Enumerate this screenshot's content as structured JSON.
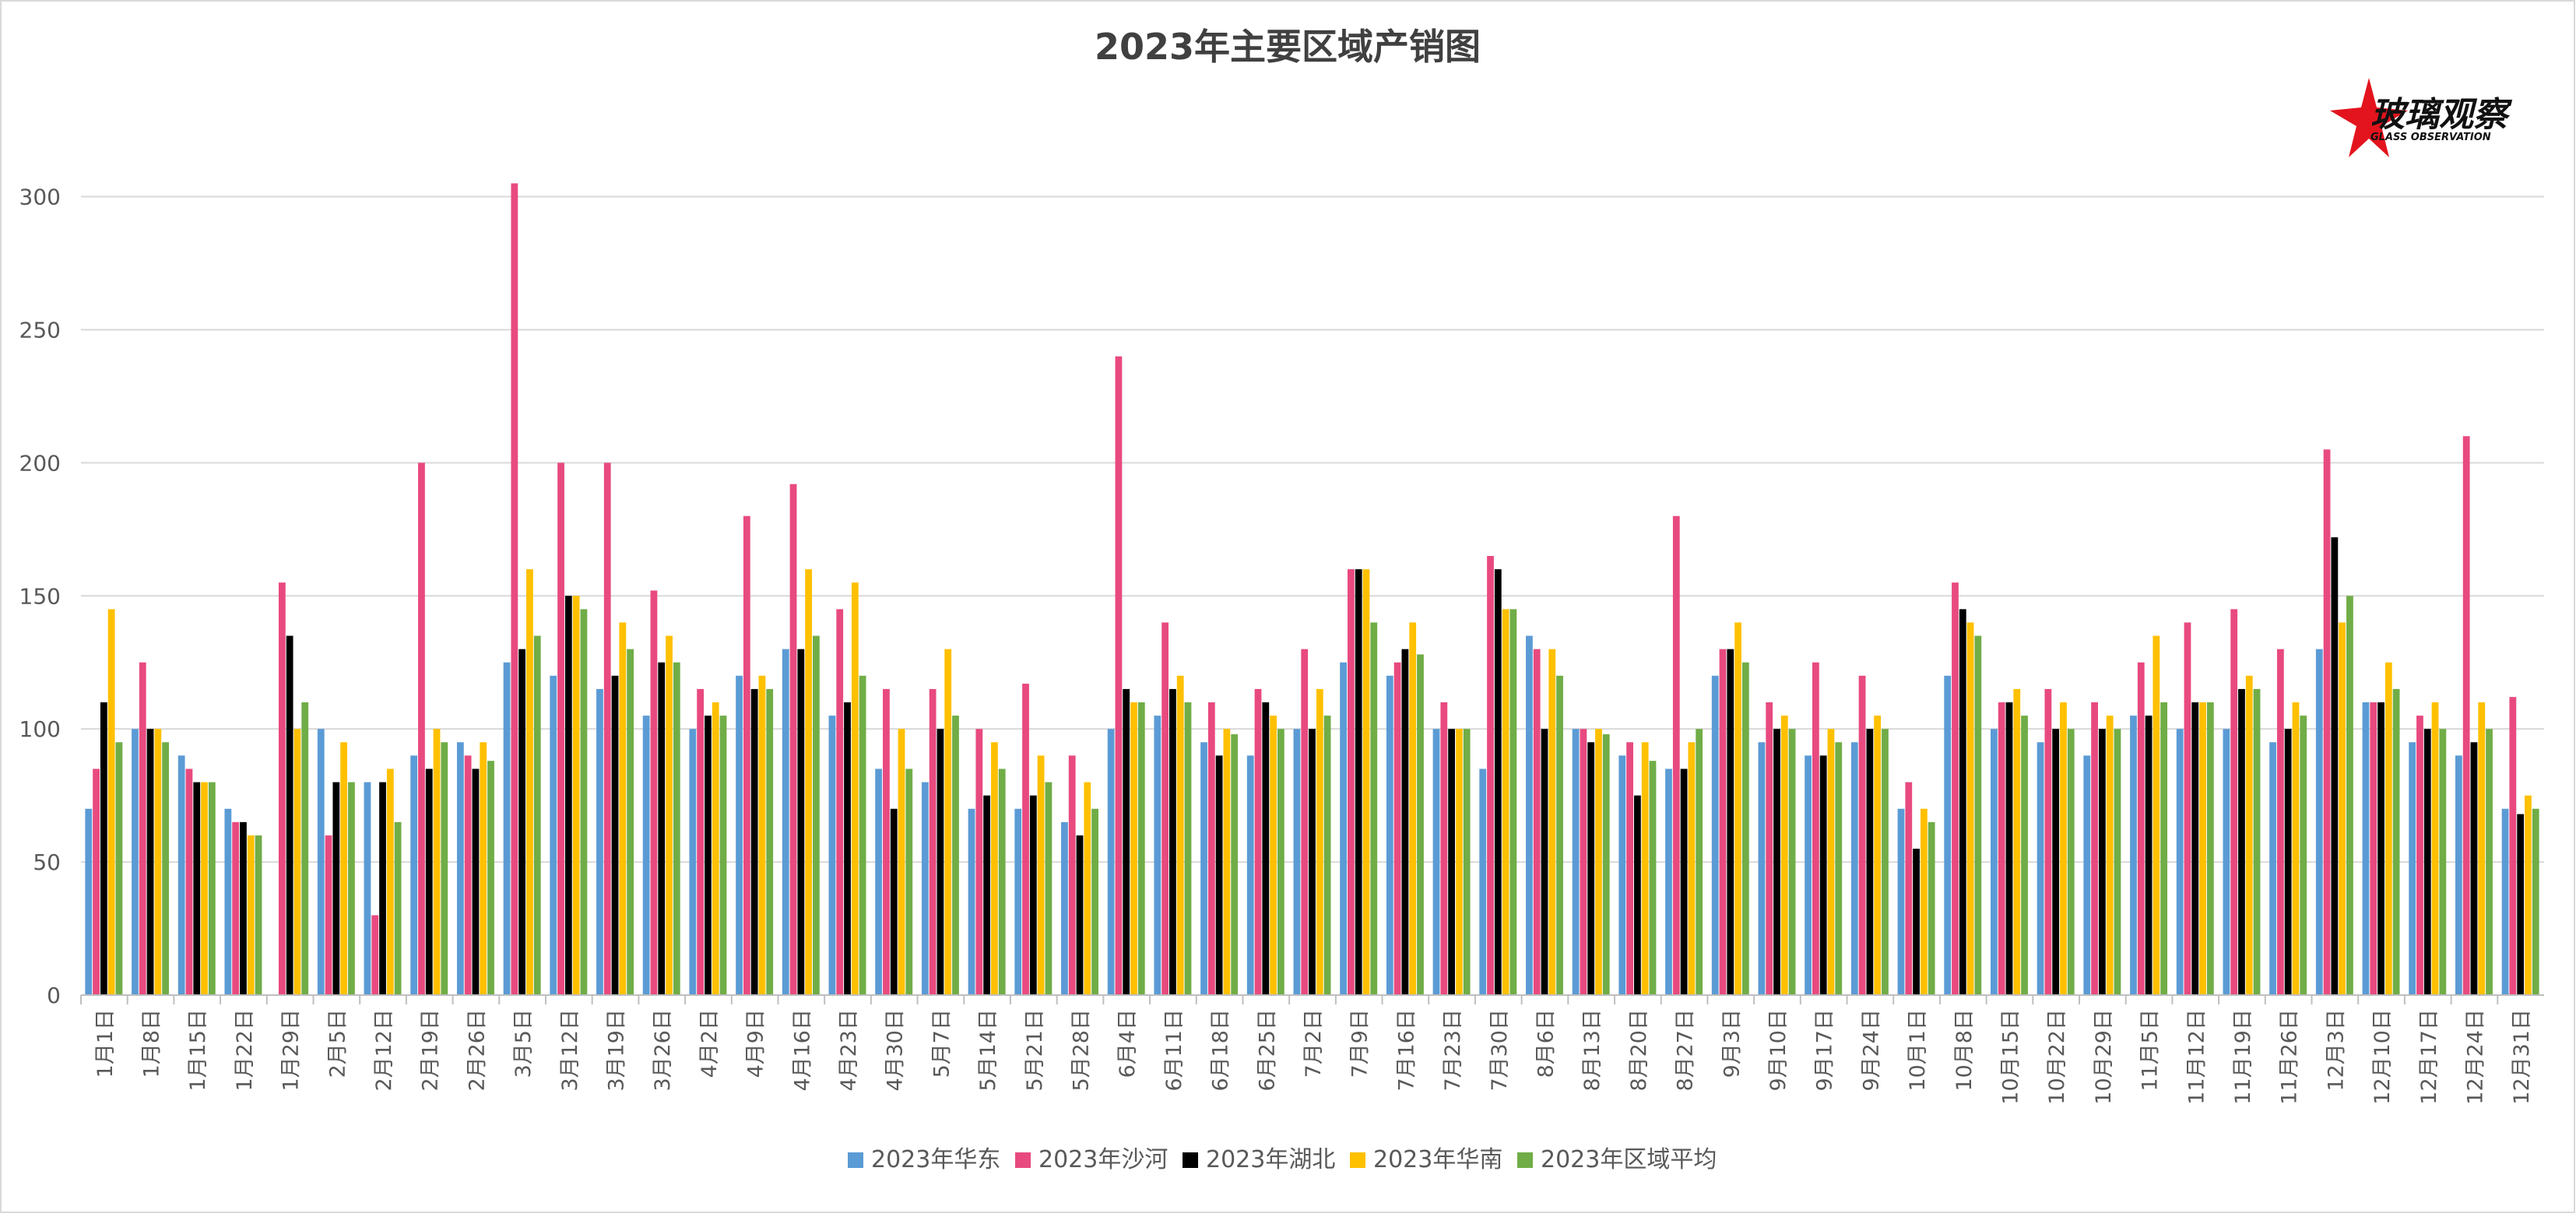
{
  "logo": {
    "main_text": "玻璃观察",
    "sub_text": "GLASS OBSERVATION"
  },
  "chart_data": {
    "type": "bar",
    "title": "2023年主要区域产销图",
    "xlabel": "",
    "ylabel": "",
    "ylim": [
      0,
      330
    ],
    "yticks": [
      0,
      50,
      100,
      150,
      200,
      250,
      300
    ],
    "grid": true,
    "legend_position": "bottom",
    "x_tick_labels": [
      "1月1日",
      "1月8日",
      "1月15日",
      "1月22日",
      "1月29日",
      "2月5日",
      "2月12日",
      "2月19日",
      "2月26日",
      "3月5日",
      "3月12日",
      "3月19日",
      "3月26日",
      "4月2日",
      "4月9日",
      "4月16日",
      "4月23日",
      "4月30日",
      "5月7日",
      "5月14日",
      "5月21日",
      "5月28日",
      "6月4日",
      "6月11日",
      "6月18日",
      "6月25日",
      "7月2日",
      "7月9日",
      "7月16日",
      "7月23日",
      "7月30日",
      "8月6日",
      "8月13日",
      "8月20日",
      "8月27日",
      "9月3日",
      "9月10日",
      "9月17日",
      "9月24日",
      "10月1日",
      "10月8日",
      "10月15日",
      "10月22日",
      "10月29日",
      "11月5日",
      "11月12日",
      "11月19日",
      "11月26日",
      "12月3日",
      "12月10日",
      "12月17日",
      "12月24日",
      "12月31日"
    ],
    "series": [
      {
        "name": "2023年华东",
        "color": "#5b9bd5",
        "values": [
          70,
          100,
          90,
          70,
          0,
          100,
          80,
          90,
          95,
          125,
          120,
          115,
          105,
          100,
          120,
          130,
          105,
          85,
          80,
          70,
          70,
          65,
          100,
          105,
          95,
          90,
          100,
          125,
          120,
          100,
          85,
          135,
          100,
          90,
          85,
          120,
          95,
          90,
          95,
          70,
          120,
          100,
          95,
          90,
          105,
          100,
          100,
          95,
          130,
          110,
          95,
          90,
          70
        ]
      },
      {
        "name": "2023年沙河",
        "color": "#e84a7f",
        "values": [
          85,
          125,
          85,
          65,
          155,
          60,
          30,
          200,
          90,
          305,
          200,
          200,
          152,
          115,
          180,
          192,
          145,
          115,
          115,
          100,
          117,
          90,
          240,
          140,
          110,
          115,
          130,
          160,
          125,
          110,
          165,
          130,
          100,
          95,
          180,
          130,
          110,
          125,
          120,
          80,
          155,
          110,
          115,
          110,
          125,
          140,
          145,
          130,
          205,
          110,
          105,
          210,
          112
        ]
      },
      {
        "name": "2023年湖北",
        "color": "#000000",
        "values": [
          110,
          100,
          80,
          65,
          135,
          80,
          80,
          85,
          85,
          130,
          150,
          120,
          125,
          105,
          115,
          130,
          110,
          70,
          100,
          75,
          75,
          60,
          115,
          115,
          90,
          110,
          100,
          160,
          130,
          100,
          160,
          100,
          95,
          75,
          85,
          130,
          100,
          90,
          100,
          55,
          145,
          110,
          100,
          100,
          105,
          110,
          115,
          100,
          172,
          110,
          100,
          95,
          68
        ]
      },
      {
        "name": "2023年华南",
        "color": "#ffc000",
        "values": [
          145,
          100,
          80,
          60,
          100,
          95,
          85,
          100,
          95,
          160,
          150,
          140,
          135,
          110,
          120,
          160,
          155,
          100,
          130,
          95,
          90,
          80,
          110,
          120,
          100,
          105,
          115,
          160,
          140,
          100,
          145,
          130,
          100,
          95,
          95,
          140,
          105,
          100,
          105,
          70,
          140,
          115,
          110,
          105,
          135,
          110,
          120,
          110,
          140,
          125,
          110,
          110,
          75
        ]
      },
      {
        "name": "2023年区域平均",
        "color": "#70ad47",
        "values": [
          95,
          95,
          80,
          60,
          110,
          80,
          65,
          95,
          88,
          135,
          145,
          130,
          125,
          105,
          115,
          135,
          120,
          85,
          105,
          85,
          80,
          70,
          110,
          110,
          98,
          100,
          105,
          140,
          128,
          100,
          145,
          120,
          98,
          88,
          100,
          125,
          100,
          95,
          100,
          65,
          135,
          105,
          100,
          100,
          110,
          110,
          115,
          105,
          150,
          115,
          100,
          100,
          70
        ]
      }
    ]
  }
}
